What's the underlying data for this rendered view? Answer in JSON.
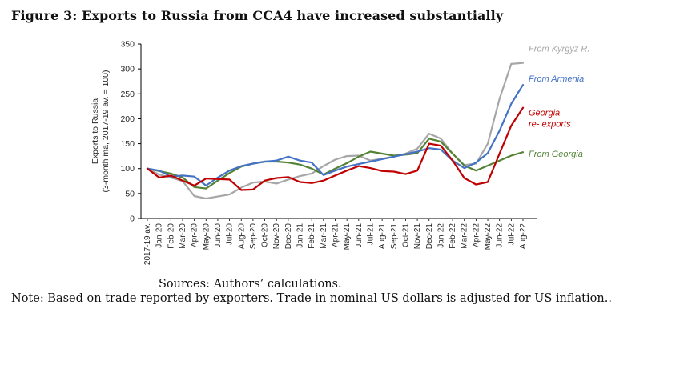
{
  "figure": {
    "title": "Figure 3: Exports to Russia from CCA4 have increased substantially",
    "sources": "Sources: Authors’ calculations.",
    "note": "Note: Based on trade reported by exporters. Trade in nominal US dollars is adjusted for US inflation.."
  },
  "chart_data": {
    "type": "line",
    "title": "",
    "xlabel": "",
    "ylabel_lines": [
      "Exports to Russia",
      "(3-month ma, 2017-19 av. = 100)"
    ],
    "ylim": [
      0,
      350
    ],
    "ytick_step": 50,
    "grid": false,
    "legend_position": "end-of-line-labels",
    "categories": [
      "2017-19 av.",
      "Jan-20",
      "Feb-20",
      "Mar-20",
      "Apr-20",
      "May-20",
      "Jun-20",
      "Jul-20",
      "Aug-20",
      "Sep-20",
      "Oct-20",
      "Nov-20",
      "Dec-20",
      "Jan-21",
      "Feb-21",
      "Mar-21",
      "Apr-21",
      "May-21",
      "Jun-21",
      "Jul-21",
      "Aug-21",
      "Sep-21",
      "Oct-21",
      "Nov-21",
      "Dec-21",
      "Jan-22",
      "Feb-22",
      "Mar-22",
      "Apr-22",
      "May-22",
      "Jun-22",
      "Jul-22",
      "Aug-22"
    ],
    "series": [
      {
        "name": "From Kyrgyz R.",
        "label_lines": [
          "From Kyrgyz R."
        ],
        "color": "#a6a6a6",
        "values": [
          100,
          88,
          82,
          75,
          45,
          40,
          44,
          48,
          62,
          72,
          74,
          70,
          78,
          85,
          90,
          105,
          118,
          125,
          126,
          116,
          120,
          124,
          130,
          140,
          170,
          160,
          130,
          107,
          110,
          150,
          240,
          310,
          312
        ]
      },
      {
        "name": "From Armenia",
        "label_lines": [
          "From Armenia"
        ],
        "color": "#4472c4",
        "values": [
          100,
          96,
          84,
          86,
          84,
          66,
          82,
          96,
          105,
          110,
          114,
          116,
          124,
          116,
          112,
          87,
          96,
          104,
          109,
          114,
          119,
          124,
          129,
          134,
          141,
          138,
          116,
          101,
          112,
          131,
          176,
          230,
          268
        ]
      },
      {
        "name": "Georgia re-exports",
        "label_lines": [
          "Georgia",
          "re- exports"
        ],
        "color": "#c00000",
        "values": [
          100,
          82,
          86,
          76,
          66,
          80,
          79,
          78,
          57,
          58,
          76,
          81,
          83,
          73,
          71,
          76,
          86,
          96,
          105,
          101,
          95,
          94,
          89,
          96,
          150,
          146,
          116,
          81,
          68,
          73,
          130,
          186,
          222
        ]
      },
      {
        "name": "From Georgia",
        "label_lines": [
          "From Georgia"
        ],
        "color": "#548235",
        "values": [
          100,
          95,
          90,
          82,
          63,
          60,
          76,
          91,
          104,
          110,
          114,
          114,
          112,
          108,
          100,
          88,
          100,
          111,
          124,
          134,
          130,
          126,
          128,
          131,
          160,
          154,
          130,
          106,
          96,
          106,
          116,
          126,
          133
        ]
      }
    ]
  }
}
